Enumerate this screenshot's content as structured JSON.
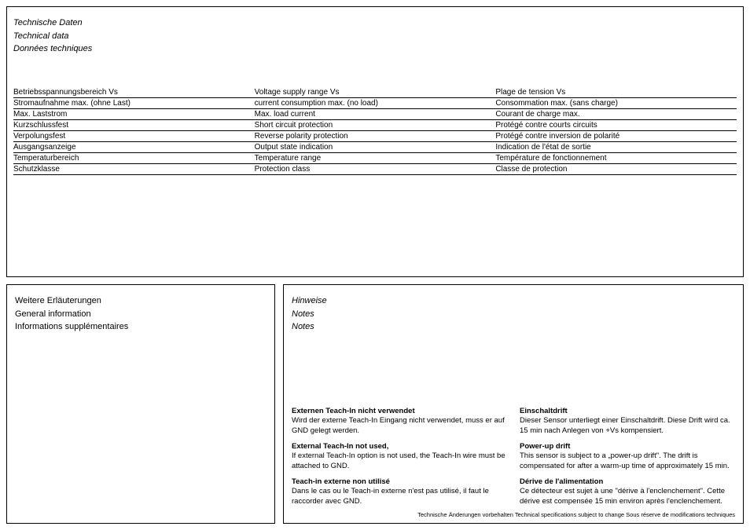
{
  "top": {
    "titles": [
      "Technische Daten",
      "Technical data",
      "Données techniques"
    ],
    "rows": [
      [
        "Betriebsspannungsbereich Vs",
        "Voltage supply range Vs",
        "Plage de tension Vs"
      ],
      [
        "Stromaufnahme max. (ohne Last)",
        "current consumption max. (no load)",
        "Consommation max. (sans charge)"
      ],
      [
        "Max. Laststrom",
        "Max. load current",
        "Courant de charge max."
      ],
      [
        "Kurzschlussfest",
        "Short circuit protection",
        "Protégé contre courts circuits"
      ],
      [
        "Verpolungsfest",
        "Reverse polarity protection",
        "Protégé contre inversion de polarité"
      ],
      [
        "Ausgangsanzeige",
        "Output state indication",
        "Indication de l'état de sortie"
      ],
      [
        "Temperaturbereich",
        "Temperature range",
        "Température de fonctionnement"
      ],
      [
        "Schutzklasse",
        "Protection class",
        "Classe de protection"
      ]
    ]
  },
  "left": {
    "lines": [
      "Weitere Erläuterungen",
      "General information",
      "Informations supplémentaires"
    ]
  },
  "right": {
    "titles": [
      "Hinweise",
      "Notes",
      "Notes"
    ],
    "col1": [
      {
        "h": "Externen Teach-In nicht verwendet",
        "t": "Wird der externe Teach-In Eingang nicht verwendet, muss er auf GND gelegt werden."
      },
      {
        "h": "External Teach-In not used,",
        "t": "If external Teach-In option is not used, the Teach-In wire must be attached to GND."
      },
      {
        "h": "Teach-in externe non utilisé",
        "t": "Dans le cas ou le Teach-in externe n'est pas utilisé, il faut le raccorder avec GND."
      }
    ],
    "col2": [
      {
        "h": "Einschaltdrift",
        "t": "Dieser Sensor unterliegt einer Einschaltdrift. Diese Drift wird ca. 15 min nach Anlegen von +Vs kompensiert."
      },
      {
        "h": "Power-up drift",
        "t": "This sensor is subject to a „power-up drift\". The drift is compensated for after a warm-up time of approximately 15 min."
      },
      {
        "h": "Dérive de l'alimentation",
        "t": "Ce détecteur est sujet à une \"dérive à l'enclenchement\". Cette dérive est compensée 15 min environ après l'enclenchement."
      }
    ],
    "footer": "Technische Änderungen vorbehalten   Technical specifications subject to change   Sous réserve de modifications techniques"
  }
}
